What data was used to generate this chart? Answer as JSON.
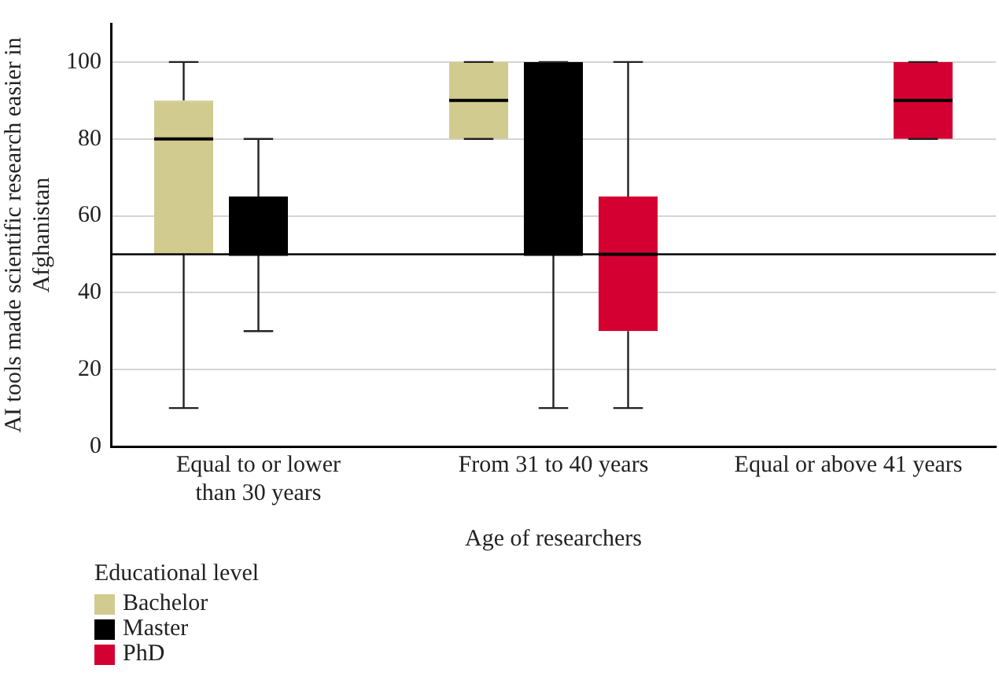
{
  "chart_data": {
    "type": "box",
    "xlabel": "Age of researchers",
    "ylabel": "AI tools made scientific research easier in Afghanistan",
    "legend_title": "Educational level",
    "categories": [
      "Equal to or lower than 30 years",
      "From 31 to 40 years",
      "Equal or above 41 years"
    ],
    "series": [
      {
        "name": "Bachelor",
        "color": "#d1cb8f",
        "boxes": [
          {
            "low": 10,
            "q1": 50,
            "median": 80,
            "q3": 90,
            "high": 100
          },
          {
            "low": 80,
            "q1": 80,
            "median": 90,
            "q3": 100,
            "high": 100
          },
          null
        ]
      },
      {
        "name": "Master",
        "color": "#000000",
        "boxes": [
          {
            "low": 30,
            "q1": 50,
            "median": 50,
            "q3": 65,
            "high": 80
          },
          {
            "low": 10,
            "q1": 50,
            "median": 50,
            "q3": 100,
            "high": 100
          },
          null
        ]
      },
      {
        "name": "PhD",
        "color": "#d50032",
        "boxes": [
          null,
          {
            "low": 10,
            "q1": 30,
            "median": 50,
            "q3": 65,
            "high": 100
          },
          {
            "low": 80,
            "q1": 80,
            "median": 90,
            "q3": 100,
            "high": 100
          }
        ]
      }
    ],
    "ylim": [
      0,
      110
    ],
    "yticks": [
      0,
      20,
      40,
      60,
      80,
      100
    ],
    "grid": "y",
    "ref_lines": [
      {
        "axis": "y",
        "value": 50,
        "color": "#000000"
      }
    ],
    "legend": "bottom left"
  }
}
